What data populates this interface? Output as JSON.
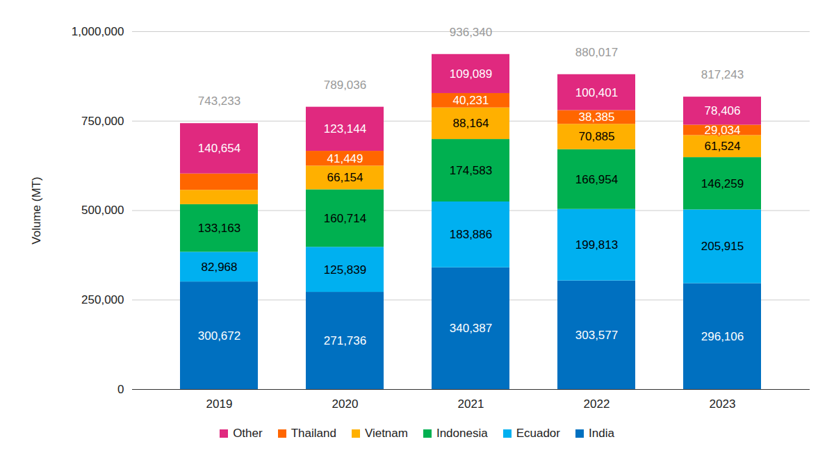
{
  "chart_data": {
    "type": "bar",
    "stacked": true,
    "data_labels": true,
    "grid": true,
    "legend": "bottom",
    "y_label": "Volume (MT)",
    "categories": [
      "2019",
      "2020",
      "2021",
      "2022",
      "2023"
    ],
    "ylim": [
      0,
      1000000
    ],
    "yticks": [
      0,
      {
        "value": 250000,
        "label": "250,000"
      },
      {
        "value": 500000,
        "label": "500,000"
      },
      {
        "value": 750000,
        "label": "750,000"
      },
      {
        "value": 1000000,
        "label": "1,000,000"
      }
    ],
    "totals": [
      743233,
      789036,
      936340,
      880017,
      817243
    ],
    "total_labels": [
      "743,233",
      "789,036",
      "936,340",
      "880,017",
      "817,243"
    ],
    "series": [
      {
        "name": "India",
        "color": "#0070c0",
        "values": [
          300672,
          271736,
          340387,
          303577,
          296106
        ],
        "value_labels": [
          "300,672",
          "271,736",
          "340,387",
          "303,577",
          "296,106"
        ]
      },
      {
        "name": "Ecuador",
        "color": "#00b0f0",
        "values": [
          82968,
          125839,
          183886,
          199813,
          205915
        ],
        "value_labels": [
          "82,968",
          "125,839",
          "183,886",
          "199,813",
          "205,915"
        ]
      },
      {
        "name": "Indonesia",
        "color": "#00b050",
        "values": [
          133163,
          160714,
          174583,
          166954,
          146259
        ],
        "value_labels": [
          "133,163",
          "160,714",
          "174,583",
          "166,954",
          "146,259"
        ]
      },
      {
        "name": "Vietnam",
        "color": "#ffb000",
        "values": [
          40000,
          66154,
          88164,
          70885,
          61524
        ],
        "value_labels": [
          null,
          "66,154",
          "88,164",
          "70,885",
          "61,524"
        ]
      },
      {
        "name": "Thailand",
        "color": "#ff6600",
        "values": [
          45776,
          41449,
          40231,
          38385,
          29034
        ],
        "value_labels": [
          null,
          "41,449",
          "40,231",
          "38,385",
          "29,034"
        ]
      },
      {
        "name": "Other",
        "color": "#e0297f",
        "values": [
          140654,
          123144,
          109089,
          100401,
          78406
        ],
        "value_labels": [
          "140,654",
          "123,144",
          "109,089",
          "100,401",
          "78,406"
        ]
      }
    ]
  }
}
